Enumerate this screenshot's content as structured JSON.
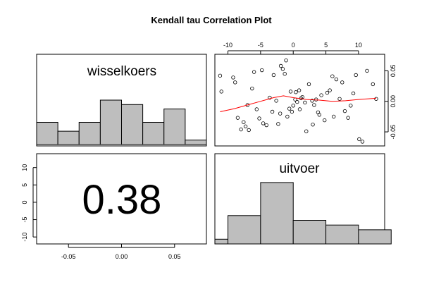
{
  "title": "Kendall tau Correlation Plot",
  "colors": {
    "bar_fill": "#bebebe",
    "line": "#ff0000",
    "frame": "#000000"
  },
  "chart_data": [
    {
      "type": "bar",
      "panel": "top-left",
      "label": "wisselkoers",
      "bins": [
        -0.08,
        -0.06,
        -0.04,
        -0.02,
        0.0,
        0.02,
        0.04,
        0.06,
        0.08
      ],
      "counts": [
        5,
        3,
        5,
        10,
        9,
        5,
        8,
        1
      ]
    },
    {
      "type": "scatter",
      "panel": "top-right",
      "x_ticks": [
        "-10",
        "-5",
        "0",
        "5",
        "10"
      ],
      "y_ticks": [
        "0.05",
        "0.00",
        "-0.05"
      ],
      "xlim": [
        -12,
        14
      ],
      "ylim": [
        -0.073,
        0.077
      ],
      "points": [
        [
          -11.2,
          0.042
        ],
        [
          -11.0,
          0.016
        ],
        [
          -8.5,
          -0.027
        ],
        [
          -8.0,
          -0.046
        ],
        [
          -7.6,
          -0.034
        ],
        [
          -7.3,
          -0.041
        ],
        [
          -6.8,
          -0.047
        ],
        [
          -6.3,
          0.021
        ],
        [
          -6.0,
          0.048
        ],
        [
          -5.2,
          -0.028
        ],
        [
          -4.6,
          -0.036
        ],
        [
          -4.1,
          -0.039
        ],
        [
          -3.6,
          0.006
        ],
        [
          -3.2,
          -0.017
        ],
        [
          -2.6,
          0.001
        ],
        [
          -2.3,
          -0.037
        ],
        [
          -1.9,
          0.058
        ],
        [
          -1.6,
          0.053
        ],
        [
          -1.3,
          0.045
        ],
        [
          -0.9,
          -0.025
        ],
        [
          -0.6,
          -0.012
        ],
        [
          -0.4,
          0.016
        ],
        [
          -0.2,
          -0.017
        ],
        [
          0.0,
          -0.007
        ],
        [
          0.3,
          0.003
        ],
        [
          0.6,
          -0.001
        ],
        [
          0.9,
          0.018
        ],
        [
          1.2,
          0.005
        ],
        [
          1.4,
          0.007
        ],
        [
          1.8,
          -0.002
        ],
        [
          2.4,
          0.028
        ],
        [
          2.9,
          0.001
        ],
        [
          3.2,
          -0.006
        ],
        [
          3.5,
          0.003
        ],
        [
          3.8,
          -0.018
        ],
        [
          4.0,
          -0.022
        ],
        [
          4.3,
          0.01
        ],
        [
          4.8,
          -0.031
        ],
        [
          5.2,
          0.014
        ],
        [
          5.6,
          0.018
        ],
        [
          6.2,
          -0.025
        ],
        [
          6.6,
          0.036
        ],
        [
          7.1,
          0.004
        ],
        [
          7.5,
          0.031
        ],
        [
          7.9,
          -0.016
        ],
        [
          8.4,
          -0.027
        ],
        [
          8.8,
          -0.007
        ],
        [
          9.2,
          0.013
        ],
        [
          9.6,
          0.043
        ],
        [
          10.1,
          -0.062
        ],
        [
          10.6,
          -0.066
        ],
        [
          11.3,
          0.05
        ],
        [
          12.2,
          0.028
        ],
        [
          12.7,
          0.004
        ],
        [
          -9.2,
          0.039
        ],
        [
          -8.9,
          0.031
        ],
        [
          -7.0,
          -0.006
        ],
        [
          -5.6,
          -0.013
        ],
        [
          -4.8,
          0.051
        ],
        [
          -3.0,
          0.043
        ],
        [
          -1.1,
          0.067
        ],
        [
          1.0,
          -0.013
        ],
        [
          2.0,
          -0.049
        ],
        [
          3.0,
          -0.038
        ],
        [
          6.0,
          0.041
        ],
        [
          -2.0,
          -0.02
        ],
        [
          0.4,
          0.015
        ]
      ],
      "smooth": [
        [
          -11.2,
          -0.017
        ],
        [
          -9.0,
          -0.012
        ],
        [
          -7.0,
          -0.006
        ],
        [
          -5.0,
          0.0
        ],
        [
          -3.0,
          0.006
        ],
        [
          -1.5,
          0.009
        ],
        [
          0.0,
          0.006
        ],
        [
          2.0,
          0.003
        ],
        [
          4.0,
          0.002
        ],
        [
          6.0,
          0.0
        ],
        [
          8.0,
          0.001
        ],
        [
          10.0,
          0.003
        ],
        [
          12.7,
          0.005
        ]
      ]
    },
    {
      "type": "table",
      "panel": "bottom-left",
      "value": "0.38",
      "x_ticks": [
        "-0.05",
        "0.00",
        "0.05"
      ],
      "y_ticks": [
        "10",
        "5",
        "0",
        "-5",
        "-10"
      ]
    },
    {
      "type": "bar",
      "panel": "bottom-right",
      "label": "uitvoer",
      "bins": [
        -12,
        -10,
        -5,
        0,
        5,
        10,
        15
      ],
      "counts": [
        1,
        6,
        13,
        5,
        4,
        3
      ]
    }
  ]
}
